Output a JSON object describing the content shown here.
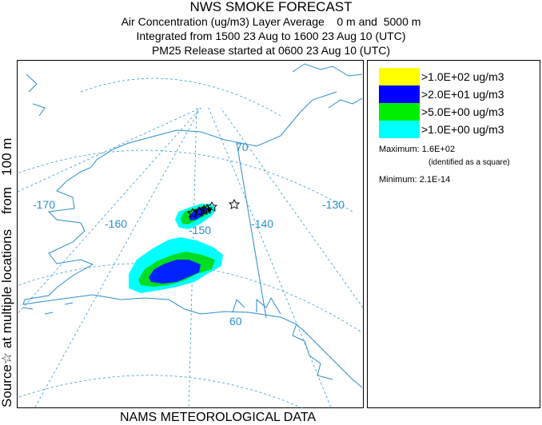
{
  "header": {
    "title": "NWS SMOKE FORECAST",
    "line2": "Air Concentration (ug/m3) Layer Average    0 m and  5000 m",
    "line3": "Integrated from 1500 23 Aug to 1600 23 Aug 10 (UTC)",
    "line4": "PM25 Release started at 0600 23 Aug 10 (UTC)"
  },
  "side_label": "Source☆ at multiple locations    from   100 m",
  "footer": "NAMS METEOROLOGICAL DATA",
  "map": {
    "latitude_labels": [
      "70",
      "60"
    ],
    "longitude_labels": [
      "-170",
      "-160",
      "-150",
      "-140",
      "-130"
    ],
    "colors": {
      "grid": "#3a9bd6",
      "coast": "#2a8fcf",
      "border": "#2a8fcf"
    }
  },
  "legend": {
    "levels": [
      {
        "label": ">1.0E+02 ug/m3",
        "color": "#ffff00"
      },
      {
        "label": ">2.0E+01 ug/m3",
        "color": "#0000ff"
      },
      {
        "label": ">5.0E+00 ug/m3",
        "color": "#00ee00"
      },
      {
        "label": ">1.0E+00 ug/m3",
        "color": "#00ffff"
      }
    ],
    "maximum_label": "Maximum: 1.6E+02",
    "maximum_note": "(identified as a square)",
    "minimum_label": "Minimum: 2.1E-14"
  }
}
